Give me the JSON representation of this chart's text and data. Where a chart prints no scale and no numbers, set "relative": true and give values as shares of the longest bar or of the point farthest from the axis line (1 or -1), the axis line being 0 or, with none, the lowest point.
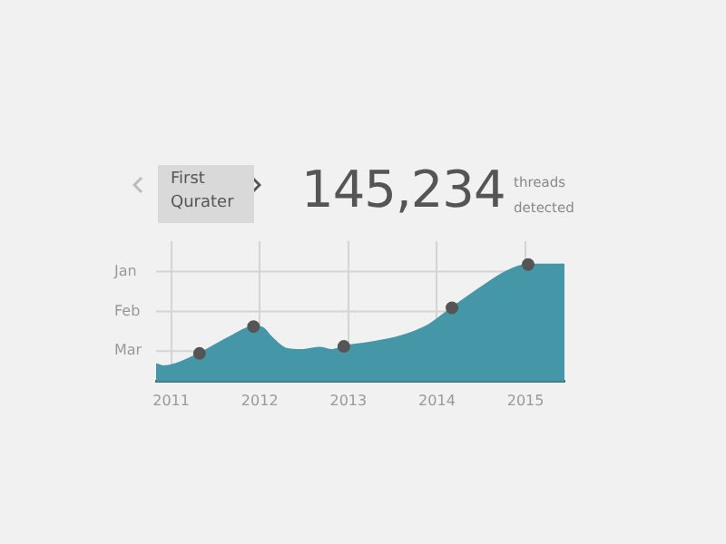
{
  "chart_data": {
    "type": "area",
    "relative": true,
    "annotations": [
      "First Qurater",
      "145,234",
      "threads detected"
    ],
    "series": [
      {
        "color": "#4597a8",
        "x": [
          2010.83,
          2010.91,
          2011.05,
          2011.32,
          2011.66,
          2011.93,
          2012.03,
          2012.13,
          2012.3,
          2012.47,
          2012.68,
          2012.81,
          2012.95,
          2013.22,
          2013.56,
          2013.9,
          2014.17,
          2014.51,
          2014.78,
          2015.03,
          2015.44
        ],
        "values": [
          0.15,
          0.13,
          0.15,
          0.24,
          0.38,
          0.47,
          0.46,
          0.38,
          0.28,
          0.27,
          0.29,
          0.27,
          0.3,
          0.33,
          0.38,
          0.48,
          0.63,
          0.81,
          0.94,
          1,
          1
        ]
      },
      {
        "type": "scatter",
        "marker": "circle",
        "color": "#555555",
        "x": [
          2011.32,
          2011.93,
          2012.95,
          2014.17,
          2015.03
        ],
        "values": [
          0.24,
          0.47,
          0.3,
          0.63,
          1
        ]
      }
    ],
    "xlim": [
      2010.83,
      2015.44
    ],
    "xticks": [
      2011,
      2012,
      2013,
      2014,
      2015
    ],
    "ref_lines": [
      {
        "axis": "y",
        "value": 0.26,
        "label": "Mar"
      },
      {
        "axis": "y",
        "value": 0.6,
        "label": "Feb"
      },
      {
        "axis": "y",
        "value": 0.94,
        "label": "Jan"
      }
    ],
    "grid": "x"
  }
}
